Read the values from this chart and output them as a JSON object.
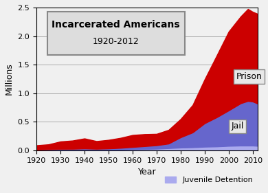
{
  "title_line1": "Incarcerated Americans",
  "title_line2": "1920-2012",
  "xlabel": "Year",
  "ylabel": "Millions",
  "ylim": [
    0,
    2.5
  ],
  "xlim": [
    1920,
    2012
  ],
  "years": [
    1920,
    1925,
    1930,
    1935,
    1940,
    1945,
    1950,
    1955,
    1960,
    1965,
    1970,
    1975,
    1980,
    1985,
    1990,
    1995,
    2000,
    2005,
    2008,
    2010,
    2012
  ],
  "prison": [
    0.075,
    0.085,
    0.13,
    0.145,
    0.175,
    0.135,
    0.15,
    0.175,
    0.21,
    0.21,
    0.2,
    0.24,
    0.32,
    0.48,
    0.77,
    1.08,
    1.38,
    1.52,
    1.61,
    1.57,
    1.57
  ],
  "jail": [
    0.01,
    0.015,
    0.02,
    0.02,
    0.025,
    0.02,
    0.025,
    0.03,
    0.04,
    0.05,
    0.06,
    0.08,
    0.18,
    0.26,
    0.41,
    0.51,
    0.62,
    0.74,
    0.78,
    0.77,
    0.74
  ],
  "juvenile": [
    0.005,
    0.006,
    0.007,
    0.008,
    0.01,
    0.008,
    0.01,
    0.015,
    0.02,
    0.025,
    0.03,
    0.04,
    0.05,
    0.055,
    0.065,
    0.07,
    0.08,
    0.085,
    0.085,
    0.085,
    0.08
  ],
  "prison_color": "#cc0000",
  "jail_color": "#6666cc",
  "juvenile_color": "#aaaaee",
  "bg_color": "#f0f0f0",
  "grid_color": "#aaaaaa",
  "xticks": [
    1920,
    1930,
    1940,
    1950,
    1960,
    1970,
    1980,
    1990,
    2000,
    2010
  ],
  "yticks": [
    0,
    0.5,
    1.0,
    1.5,
    2.0,
    2.5
  ]
}
